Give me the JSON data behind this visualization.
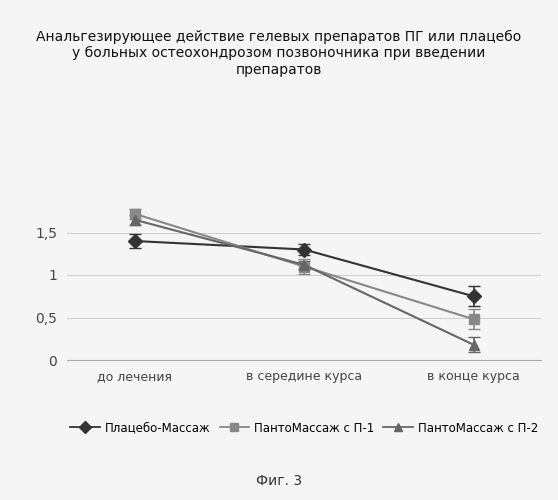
{
  "title": "Анальгезирующее действие гелевых препаратов ПГ или плацебо\nу больных остеохондрозом позвоночника при введении\nпрепаратов",
  "xlabel_ticks": [
    "до лечения",
    "в середине курса",
    "в конце курса"
  ],
  "series": [
    {
      "label": "Плацебо-Массаж",
      "values": [
        1.4,
        1.3,
        0.75
      ],
      "errors": [
        0.08,
        0.07,
        0.12
      ],
      "color": "#333333",
      "marker": "D",
      "linestyle": "-",
      "linewidth": 1.5
    },
    {
      "label": "ПантоМассаж с П-1",
      "values": [
        1.72,
        1.1,
        0.48
      ],
      "errors": [
        0.06,
        0.09,
        0.12
      ],
      "color": "#888888",
      "marker": "s",
      "linestyle": "-",
      "linewidth": 1.5
    },
    {
      "label": "ПантоМассаж с П-2",
      "values": [
        1.65,
        1.12,
        0.18
      ],
      "errors": [
        0.06,
        0.05,
        0.09
      ],
      "color": "#666666",
      "marker": "^",
      "linestyle": "-",
      "linewidth": 1.5
    }
  ],
  "ylim": [
    0,
    2.0
  ],
  "yticks": [
    0,
    0.5,
    1.0,
    1.5
  ],
  "ytick_labels": [
    "0",
    "0,5",
    "1",
    "1,5"
  ],
  "figcaption": "Фиг. 3",
  "background_color": "#f5f5f5",
  "spine_color": "#aaaaaa"
}
